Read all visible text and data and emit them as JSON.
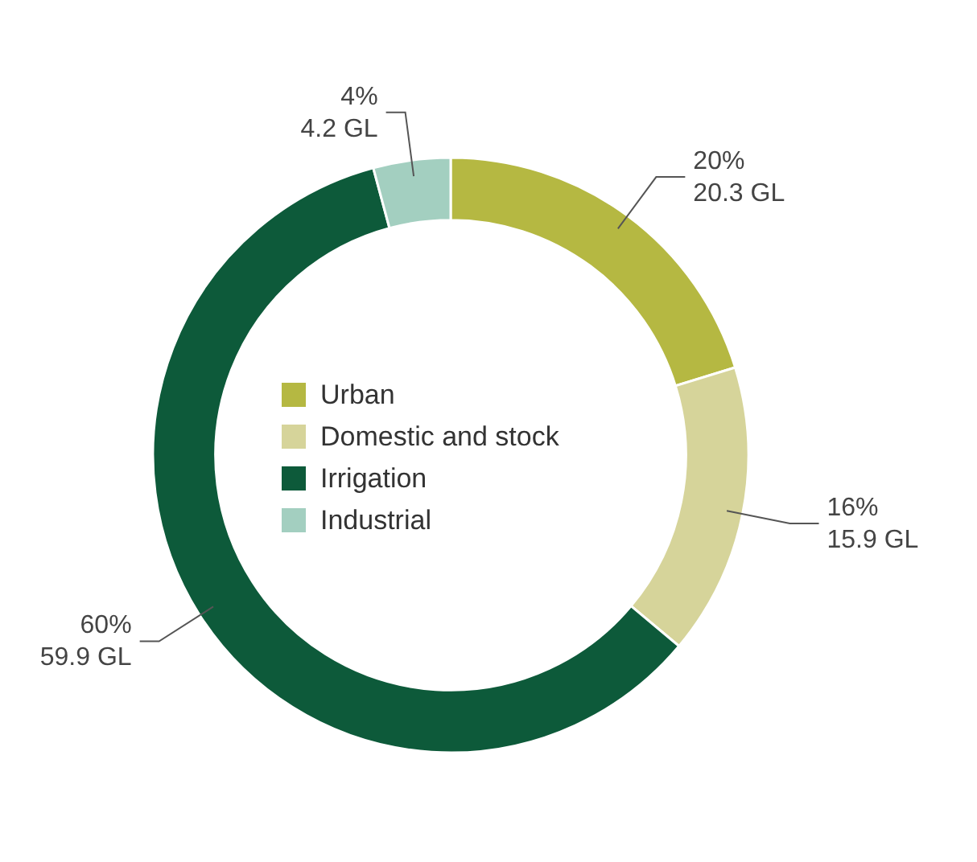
{
  "chart_data": {
    "type": "donut",
    "categories": [
      "Urban",
      "Domestic and stock",
      "Irrigation",
      "Industrial"
    ],
    "values": [
      20.3,
      15.9,
      59.9,
      4.2
    ],
    "colors": [
      "#b5b842",
      "#d6d49a",
      "#0d5a3a",
      "#a3cfc0"
    ],
    "value_labels": [
      "20%\n20.3 GL",
      "16%\n15.9 GL",
      "60%\n59.9 GL",
      "4%\n4.2 GL"
    ],
    "legend": "center"
  }
}
